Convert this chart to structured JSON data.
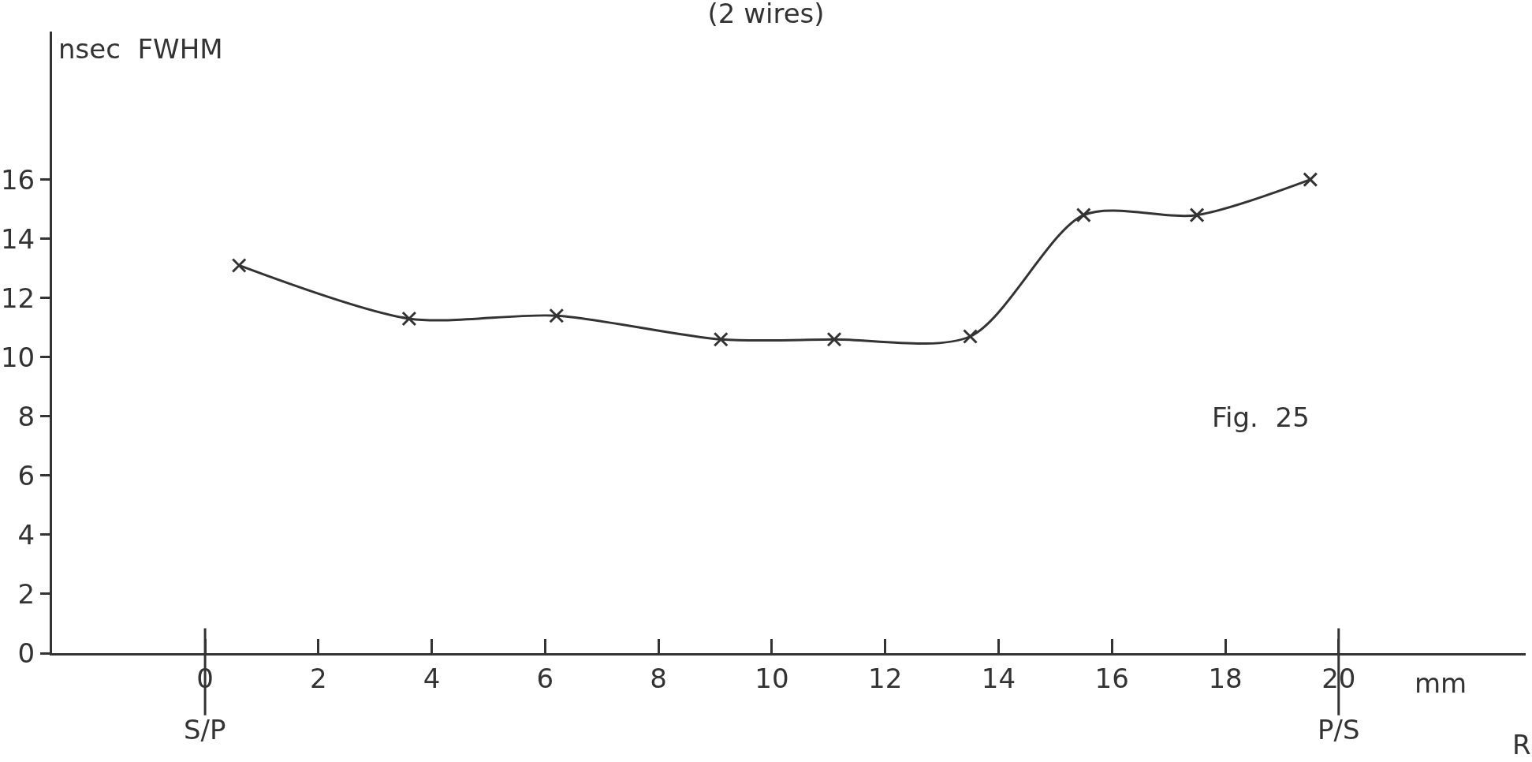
{
  "chart_data": {
    "type": "line",
    "title": "(2 wires)",
    "xlabel": "mm",
    "ylabel": "nsec  FWHM",
    "x": [
      0.6,
      3.6,
      6.2,
      9.1,
      11.1,
      13.5,
      15.5,
      17.5,
      19.5
    ],
    "series": [
      {
        "color": "#333333",
        "values": [
          13.1,
          11.3,
          11.4,
          10.6,
          10.6,
          10.7,
          14.8,
          14.8,
          16.0
        ]
      }
    ],
    "xlim": [
      -2.7,
      23.3
    ],
    "xticks": [
      0,
      2,
      4,
      6,
      8,
      10,
      12,
      14,
      16,
      18,
      20
    ],
    "ylim": [
      0,
      21
    ],
    "yticks": [
      0,
      2,
      4,
      6,
      8,
      10,
      12,
      14,
      16
    ],
    "ref_lines": [
      {
        "axis": "x",
        "value": 0,
        "label": "S/P",
        "color": "#333333"
      },
      {
        "axis": "x",
        "value": 20,
        "label": "P/S",
        "color": "#333333"
      }
    ],
    "annotations": [
      "Fig.  25",
      "R"
    ],
    "marker": "cross",
    "grid": false,
    "legend": false
  }
}
